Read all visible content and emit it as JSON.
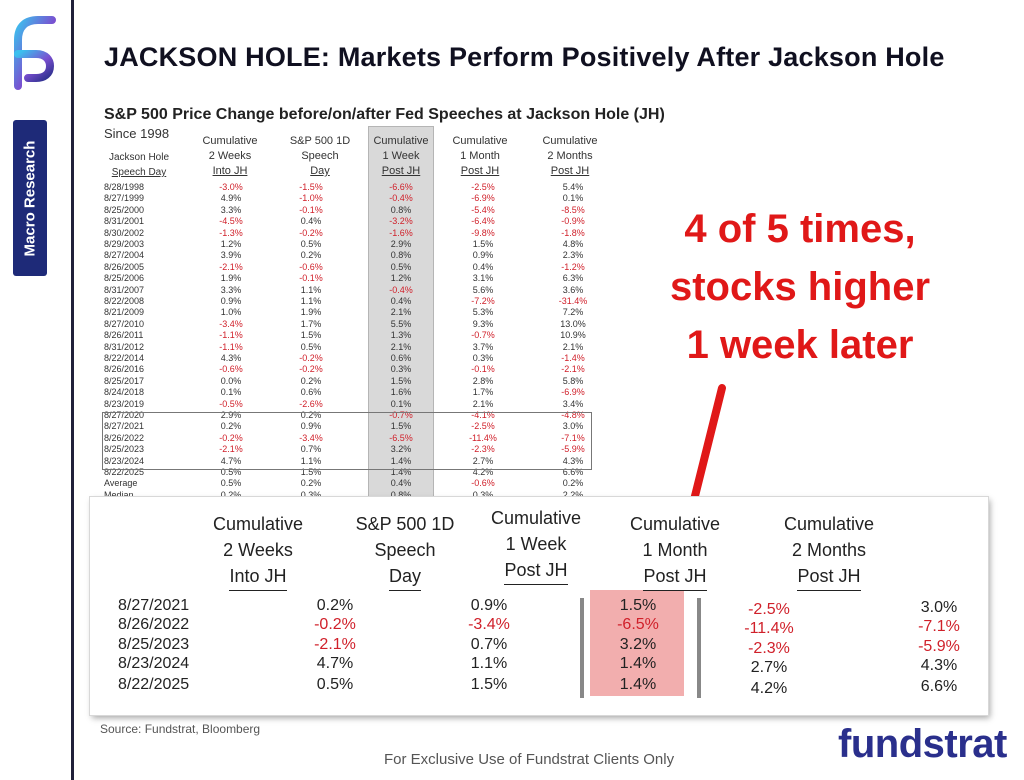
{
  "rail": {
    "section_label": "Macro Research",
    "logo_icon": "fundstrat-f-logo-icon"
  },
  "title": "JACKSON HOLE: Markets Perform Positively After Jackson Hole",
  "table": {
    "title": "S&P 500 Price Change before/on/after Fed Speeches at Jackson Hole (JH)",
    "since": "Since 1998",
    "headers": [
      [
        "Jackson Hole",
        "Speech Day"
      ],
      [
        "Cumulative",
        "2 Weeks",
        "Into JH"
      ],
      [
        "S&P 500 1D",
        "Speech",
        "Day"
      ],
      [
        "Cumulative",
        "1 Week",
        "Post JH"
      ],
      [
        "Cumulative",
        "1 Month",
        "Post JH"
      ],
      [
        "Cumulative",
        "2 Months",
        "Post JH"
      ]
    ],
    "rows": [
      [
        "8/28/1998",
        "-3.0%",
        "-1.5%",
        "-6.6%",
        "-2.5%",
        "5.4%"
      ],
      [
        "8/27/1999",
        "4.9%",
        "-1.0%",
        "-0.4%",
        "-6.9%",
        "0.1%"
      ],
      [
        "8/25/2000",
        "3.3%",
        "-0.1%",
        "0.8%",
        "-5.4%",
        "-8.5%"
      ],
      [
        "8/31/2001",
        "-4.5%",
        "0.4%",
        "-3.2%",
        "-6.4%",
        "-0.9%"
      ],
      [
        "8/30/2002",
        "-1.3%",
        "-0.2%",
        "-1.6%",
        "-9.8%",
        "-1.8%"
      ],
      [
        "8/29/2003",
        "1.2%",
        "0.5%",
        "2.9%",
        "1.5%",
        "4.8%"
      ],
      [
        "8/27/2004",
        "3.9%",
        "0.2%",
        "0.8%",
        "0.9%",
        "2.3%"
      ],
      [
        "8/26/2005",
        "-2.1%",
        "-0.6%",
        "0.5%",
        "0.4%",
        "-1.2%"
      ],
      [
        "8/25/2006",
        "1.9%",
        "-0.1%",
        "1.2%",
        "3.1%",
        "6.3%"
      ],
      [
        "8/31/2007",
        "3.3%",
        "1.1%",
        "-0.4%",
        "5.6%",
        "3.6%"
      ],
      [
        "8/22/2008",
        "0.9%",
        "1.1%",
        "0.4%",
        "-7.2%",
        "-31.4%"
      ],
      [
        "8/21/2009",
        "1.0%",
        "1.9%",
        "2.1%",
        "5.3%",
        "7.2%"
      ],
      [
        "8/27/2010",
        "-3.4%",
        "1.7%",
        "5.5%",
        "9.3%",
        "13.0%"
      ],
      [
        "8/26/2011",
        "-1.1%",
        "1.5%",
        "1.3%",
        "-0.7%",
        "10.9%"
      ],
      [
        "8/31/2012",
        "-1.1%",
        "0.5%",
        "2.1%",
        "3.7%",
        "2.1%"
      ],
      [
        "8/22/2014",
        "4.3%",
        "-0.2%",
        "0.6%",
        "0.3%",
        "-1.4%"
      ],
      [
        "8/26/2016",
        "-0.6%",
        "-0.2%",
        "0.3%",
        "-0.1%",
        "-2.1%"
      ],
      [
        "8/25/2017",
        "0.0%",
        "0.2%",
        "1.5%",
        "2.8%",
        "5.8%"
      ],
      [
        "8/24/2018",
        "0.1%",
        "0.6%",
        "1.6%",
        "1.7%",
        "-6.9%"
      ],
      [
        "8/23/2019",
        "-0.5%",
        "-2.6%",
        "0.1%",
        "2.1%",
        "3.4%"
      ],
      [
        "8/27/2020",
        "2.9%",
        "0.2%",
        "-0.7%",
        "-4.1%",
        "-4.8%"
      ],
      [
        "8/27/2021",
        "0.2%",
        "0.9%",
        "1.5%",
        "-2.5%",
        "3.0%"
      ],
      [
        "8/26/2022",
        "-0.2%",
        "-3.4%",
        "-6.5%",
        "-11.4%",
        "-7.1%"
      ],
      [
        "8/25/2023",
        "-2.1%",
        "0.7%",
        "3.2%",
        "-2.3%",
        "-5.9%"
      ],
      [
        "8/23/2024",
        "4.7%",
        "1.1%",
        "1.4%",
        "2.7%",
        "4.3%"
      ],
      [
        "8/22/2025",
        "0.5%",
        "1.5%",
        "1.4%",
        "4.2%",
        "6.6%"
      ]
    ],
    "summary": [
      [
        "Average",
        "0.5%",
        "0.2%",
        "0.4%",
        "-0.6%",
        "0.2%"
      ],
      [
        "Median",
        "0.2%",
        "0.3%",
        "0.8%",
        "0.3%",
        "2.2%"
      ]
    ]
  },
  "callout": {
    "line1": "4 of 5 times,",
    "line2": "stocks higher",
    "line3": "1 week later",
    "color": "#e01818"
  },
  "zoom": {
    "headers": [
      [
        "Cumulative",
        "2 Weeks",
        "Into JH"
      ],
      [
        "S&P 500 1D",
        "Speech",
        "Day"
      ],
      [
        "Cumulative",
        "1 Week",
        "Post JH"
      ],
      [
        "Cumulative",
        "1 Month",
        "Post JH"
      ],
      [
        "Cumulative",
        "2 Months",
        "Post JH"
      ]
    ],
    "rows": [
      [
        "8/27/2021",
        "0.2%",
        "0.9%",
        "1.5%",
        "-2.5%",
        "3.0%"
      ],
      [
        "8/26/2022",
        "-0.2%",
        "-3.4%",
        "-6.5%",
        "-11.4%",
        "-7.1%"
      ],
      [
        "8/25/2023",
        "-2.1%",
        "0.7%",
        "3.2%",
        "-2.3%",
        "-5.9%"
      ],
      [
        "8/23/2024",
        "4.7%",
        "1.1%",
        "1.4%",
        "2.7%",
        "4.3%"
      ],
      [
        "8/22/2025",
        "0.5%",
        "1.5%",
        "1.4%",
        "4.2%",
        "6.6%"
      ]
    ]
  },
  "source": "Source: Fundstrat, Bloomberg",
  "footer": "For Exclusive Use of Fundstrat Clients Only",
  "brand": "fundstrat",
  "colors": {
    "negative": "#d0202a",
    "brand": "#2a2f8c",
    "tab": "#1e2a78",
    "highlight": "#f2aeae"
  }
}
